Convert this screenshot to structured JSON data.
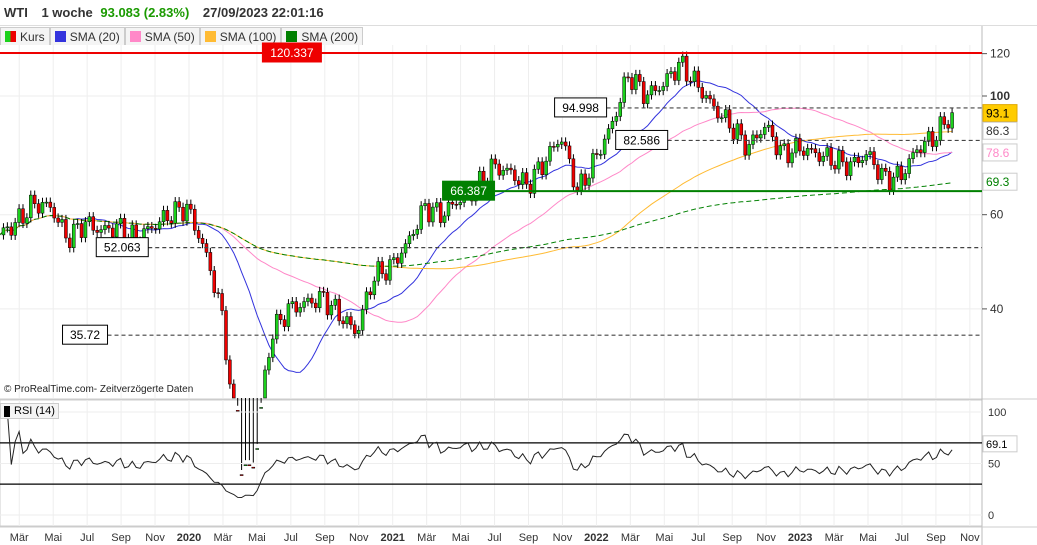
{
  "header": {
    "symbol": "WTI",
    "period": "1 woche",
    "price": "93.083 (2.83%)",
    "datetime": "27/09/2023 22:01:16",
    "price_color": "#1a9a00"
  },
  "legend": [
    {
      "label": "Kurs",
      "color": "#1cd11c"
    },
    {
      "label": "SMA (20)",
      "color": "#3333dd"
    },
    {
      "label": "SMA (50)",
      "color": "#ff88c8"
    },
    {
      "label": "SMA (100)",
      "color": "#ffbb33"
    },
    {
      "label": "SMA (200)",
      "color": "#008000"
    }
  ],
  "copyright": "© ProRealTime.com- Zeitverzögerte Daten",
  "rsi_label": "RSI (14)",
  "chart_data": {
    "type": "candlestick",
    "scale": "log",
    "ylim": [
      27,
      130
    ],
    "start": "2019-02",
    "xlim_years": [
      2019.07,
      2023.9
    ],
    "monthly_close": [
      55,
      58,
      63,
      62,
      54,
      58,
      56,
      57,
      54,
      57,
      60,
      62,
      52,
      40,
      20,
      20,
      36,
      40,
      41,
      42,
      39,
      36,
      46,
      48,
      53,
      62,
      60,
      64,
      67,
      74,
      72,
      68,
      75,
      84,
      66,
      76,
      88,
      110,
      100,
      105,
      115,
      105,
      95,
      88,
      80,
      88,
      78,
      80,
      78,
      76,
      74,
      78,
      70,
      71,
      80,
      84,
      93.083
    ],
    "price_ticks": [
      120,
      100,
      60,
      40
    ],
    "levels": [
      {
        "label": "120.337",
        "value": 120.337,
        "style": "solid",
        "color": "#ee0000",
        "label_at": 2020.65
      },
      {
        "label": "94.998",
        "value": 94.998,
        "style": "dashed",
        "color": "#444",
        "label_at": 2022.05
      },
      {
        "label": "82.586",
        "value": 82.586,
        "style": "dashed",
        "color": "#444",
        "label_at": 2022.35
      },
      {
        "label": "66.387",
        "value": 66.387,
        "style": "solid",
        "color": "#008000",
        "label_at": 2021.5
      },
      {
        "label": "52.063",
        "value": 52.063,
        "style": "dashed",
        "color": "#444",
        "label_at": 2019.8
      },
      {
        "label": "35.72",
        "value": 35.72,
        "style": "dashed",
        "color": "#444",
        "label_at": 2019.6
      }
    ],
    "right_labels": [
      {
        "text": "93.1",
        "value": 93.1,
        "bg": "#ffcc00",
        "color": "#000"
      },
      {
        "text": "86.3",
        "value": 86.3,
        "bg": "#fff",
        "color": "#333"
      },
      {
        "text": "78.6",
        "value": 78.6,
        "bg": "#fff",
        "color": "#ff88c8"
      },
      {
        "text": "69.3",
        "value": 69.3,
        "bg": "#fff",
        "color": "#008000"
      }
    ],
    "sma_periods": [
      20,
      50,
      100,
      200
    ],
    "rsi": {
      "period": 14,
      "ticks": [
        100,
        50,
        0
      ],
      "bands": [
        70,
        30
      ],
      "last_label": "69.1"
    },
    "x_ticks": [
      "Mär",
      "Mai",
      "Jul",
      "Sep",
      "Nov",
      "2020",
      "Mär",
      "Mai",
      "Jul",
      "Sep",
      "Nov",
      "2021",
      "Mär",
      "Mai",
      "Jul",
      "Sep",
      "Nov",
      "2022",
      "Mär",
      "Mai",
      "Jul",
      "Sep",
      "Nov",
      "2023",
      "Mär",
      "Mai",
      "Jul",
      "Sep",
      "Nov"
    ]
  }
}
